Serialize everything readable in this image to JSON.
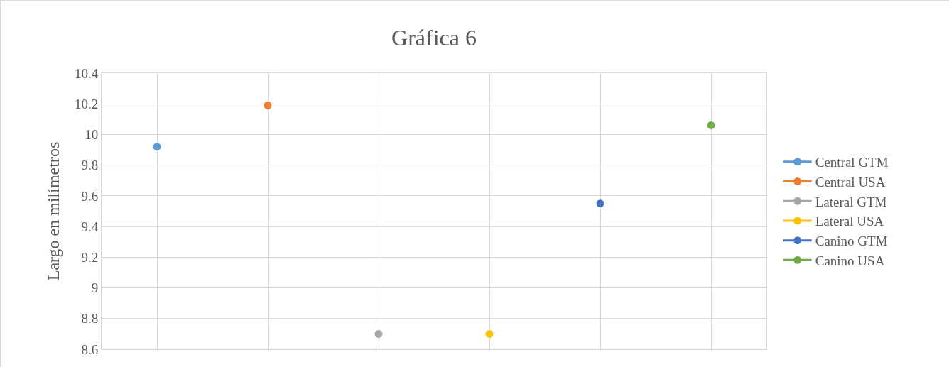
{
  "chart_data": {
    "type": "line",
    "title": "Gráfica 6",
    "ylabel": "Largo en milímetros",
    "categories": [
      null,
      null,
      null,
      null,
      null,
      null
    ],
    "series": [
      {
        "name": "Central GTM",
        "color": "#5b9bd5",
        "values": [
          9.92,
          null,
          null,
          null,
          null,
          null
        ]
      },
      {
        "name": "Central USA",
        "color": "#ed7d31",
        "values": [
          null,
          10.19,
          null,
          null,
          null,
          null
        ]
      },
      {
        "name": "Lateral GTM",
        "color": "#a5a5a5",
        "values": [
          null,
          null,
          8.7,
          null,
          null,
          null
        ]
      },
      {
        "name": "Lateral USA",
        "color": "#ffc000",
        "values": [
          null,
          null,
          null,
          8.7,
          null,
          null
        ]
      },
      {
        "name": "Canino GTM",
        "color": "#4472c4",
        "values": [
          null,
          null,
          null,
          null,
          9.55,
          null
        ]
      },
      {
        "name": "Canino USA",
        "color": "#70ad47",
        "values": [
          null,
          null,
          null,
          null,
          null,
          10.06
        ]
      }
    ],
    "ylim": [
      8.6,
      10.4
    ],
    "yticks": [
      8.6,
      8.8,
      9,
      9.2,
      9.4,
      9.6,
      9.8,
      10,
      10.2,
      10.4
    ],
    "grid": true,
    "legend": "right",
    "marker": "circle",
    "line_style": "solid",
    "tick_labels": "y"
  }
}
